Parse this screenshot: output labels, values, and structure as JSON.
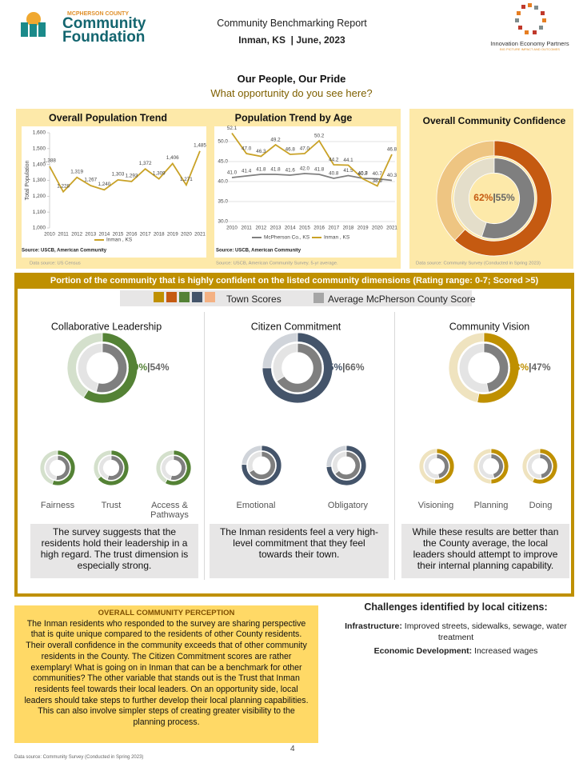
{
  "header": {
    "org_top": "MCPHERSON COUNTY",
    "org_name1": "Community",
    "org_name2": "Foundation",
    "report": "Community Benchmarking Report",
    "place": "Inman, KS  | June, 2023",
    "partner": "Innovation Economy Partners",
    "partner_sub": "BIG PICTURE IMPACT AND OUTCOMES"
  },
  "heading": {
    "title": "Our People, Our Pride",
    "subtitle": "What opportunity do you see here?"
  },
  "chart_data": [
    {
      "type": "line",
      "title": "Overall Population Trend",
      "y_label": "Total Population",
      "categories": [
        "2010",
        "2011",
        "2012",
        "2013",
        "2014",
        "2015",
        "2016",
        "2017",
        "2018",
        "2019",
        "2020",
        "2021"
      ],
      "series": [
        {
          "name": "Inman , KS",
          "color": "#c9a227",
          "values": [
            1388,
            1228,
            1319,
            1267,
            1240,
            1303,
            1293,
            1372,
            1309,
            1406,
            1271,
            1485
          ],
          "value_labels": [
            "1,388",
            "1,228",
            "1,319",
            "1,267",
            "1,240",
            "1,303",
            "1,293",
            "1,372",
            "1,309",
            "1,406",
            "1,271",
            "1,485"
          ]
        }
      ],
      "ylim": [
        1000,
        1600
      ],
      "yticks": [
        {
          "value": 1000,
          "label": "1,000"
        },
        {
          "value": 1100,
          "label": "1,100"
        },
        {
          "value": 1200,
          "label": "1,200"
        },
        {
          "value": 1300,
          "label": "1,300"
        },
        {
          "value": 1400,
          "label": "1,400"
        },
        {
          "value": 1500,
          "label": "1,500"
        },
        {
          "value": 1600,
          "label": "1,600"
        }
      ],
      "grid": false,
      "source": "Source: USCB, American Community",
      "note": "Data source: US Census"
    },
    {
      "type": "line",
      "title": "Population Trend by Age",
      "categories": [
        "2010",
        "2011",
        "2012",
        "2013",
        "2014",
        "2015",
        "2016",
        "2017",
        "2018",
        "2019",
        "2020",
        "2021"
      ],
      "series": [
        {
          "name": "McPherson Co., KS",
          "color": "#7f7f7f",
          "values": [
            41.0,
            41.4,
            41.8,
            41.8,
            41.6,
            42.0,
            41.8,
            40.8,
            41.5,
            40.8,
            40.7,
            40.3
          ],
          "value_labels": [
            "41.0",
            "41.4",
            "41.8",
            "41.8",
            "41.6",
            "42.0",
            "41.8",
            "40.8",
            "41.5",
            "40.8",
            "40.7",
            "40.3"
          ]
        },
        {
          "name": "Inman , KS",
          "color": "#c9a227",
          "values": [
            52.1,
            47.0,
            46.3,
            49.2,
            46.8,
            47.0,
            50.2,
            44.2,
            44.1,
            40.7,
            38.9,
            46.8
          ],
          "value_labels": [
            "52.1",
            "47.0",
            "46.3",
            "49.2",
            "46.8",
            "47.0",
            "50.2",
            "44.2",
            "44.1",
            "40.7",
            "38.9",
            "46.8"
          ]
        }
      ],
      "ylim": [
        30,
        55
      ],
      "yticks": [
        {
          "value": 30,
          "label": "30.0"
        },
        {
          "value": 35,
          "label": "35.0"
        },
        {
          "value": 40,
          "label": "40.0"
        },
        {
          "value": 45,
          "label": "45.0"
        },
        {
          "value": 50,
          "label": "50.0"
        }
      ],
      "grid": true,
      "source": "Source: USCB, American Community",
      "note": "Source: USCB, American Community Survey. 5-yr average."
    },
    {
      "type": "donut",
      "title": "Overall Community Confidence",
      "values": [
        62,
        55
      ],
      "value_labels": [
        "62%",
        "55%"
      ],
      "separator": "|",
      "colors": [
        "#c55a11",
        "#7f7f7f"
      ],
      "note": "Data source: Community Survey (Conducted in Spring 2023)"
    },
    {
      "type": "donut",
      "title": "Collaborative Leadership",
      "values": [
        59,
        54
      ],
      "value_labels": [
        "59%",
        "54%"
      ],
      "separator": "|",
      "colors": [
        "#548235",
        "#7f7f7f"
      ]
    },
    {
      "type": "donut",
      "title": "Fairness",
      "values": [
        55,
        52
      ],
      "colors": [
        "#548235",
        "#7f7f7f"
      ]
    },
    {
      "type": "donut",
      "title": "Trust",
      "values": [
        64,
        55
      ],
      "colors": [
        "#548235",
        "#7f7f7f"
      ]
    },
    {
      "type": "donut",
      "title": "Access &\nPathways",
      "values": [
        58,
        54
      ],
      "colors": [
        "#548235",
        "#7f7f7f"
      ]
    },
    {
      "type": "donut",
      "title": "Citizen Commitment",
      "values": [
        75,
        66
      ],
      "value_labels": [
        "75%",
        "66%"
      ],
      "separator": "|",
      "colors": [
        "#44546a",
        "#7f7f7f"
      ]
    },
    {
      "type": "donut",
      "title": "Emotional",
      "values": [
        76,
        67
      ],
      "colors": [
        "#44546a",
        "#7f7f7f"
      ]
    },
    {
      "type": "donut",
      "title": "Obligatory",
      "values": [
        74,
        65
      ],
      "colors": [
        "#44546a",
        "#7f7f7f"
      ]
    },
    {
      "type": "donut",
      "title": "Community Vision",
      "values": [
        53,
        47
      ],
      "value_labels": [
        "53%",
        "47%"
      ],
      "separator": "|",
      "colors": [
        "#bf9000",
        "#7f7f7f"
      ]
    },
    {
      "type": "donut",
      "title": "Visioning",
      "values": [
        52,
        47
      ],
      "colors": [
        "#bf9000",
        "#7f7f7f"
      ]
    },
    {
      "type": "donut",
      "title": "Planning",
      "values": [
        50,
        46
      ],
      "colors": [
        "#bf9000",
        "#7f7f7f"
      ]
    },
    {
      "type": "donut",
      "title": "Doing",
      "values": [
        57,
        48
      ],
      "colors": [
        "#bf9000",
        "#7f7f7f"
      ]
    }
  ],
  "dimensions": {
    "banner": "Portion of the community that is highly confident on the listed community dimensions (Rating range: 0-7; Scored >5)",
    "legend_town": "Town Scores",
    "legend_county": "Average McPherson County Score",
    "town_colors": [
      "#bf9000",
      "#c55a11",
      "#548235",
      "#44546a",
      "#f4b183"
    ],
    "county_color": "#a6a6a6"
  },
  "panels": [
    {
      "text": "The survey suggests that the residents hold their leadership in a high regard. The trust dimension is especially strong."
    },
    {
      "text": "The Inman residents feel a very high-level commitment that they feel towards their town."
    },
    {
      "text": "While these results are better than the County average, the local leaders should attempt to improve their internal planning capability."
    }
  ],
  "perception": {
    "title": "OVERALL COMMUNITY PERCEPTION",
    "text": "The Inman residents who responded to the survey are sharing perspective that is quite unique compared to the residents of other County residents. Their overall confidence in the community exceeds that of other community residents in the County. The Citizen Commitment scores are rather exemplary! What is going on in Inman that can be a benchmark for other communities? The other variable that stands out is the Trust that Inman residents feel towards their local leaders. On an opportunity side, local leaders should take steps to further develop their local planning capabilities. This can also involve simpler steps of creating greater visibility to the planning process."
  },
  "challenges": {
    "title": "Challenges identified by local citizens:",
    "items": [
      {
        "label": "Infrastructure:",
        "text": "Improved streets, sidewalks, sewage, water treatment"
      },
      {
        "label": "Economic Development:",
        "text": "Increased wages"
      }
    ]
  },
  "footer": {
    "source": "Data source: Community Survey (Conducted in Spring 2023)",
    "page": "4"
  }
}
